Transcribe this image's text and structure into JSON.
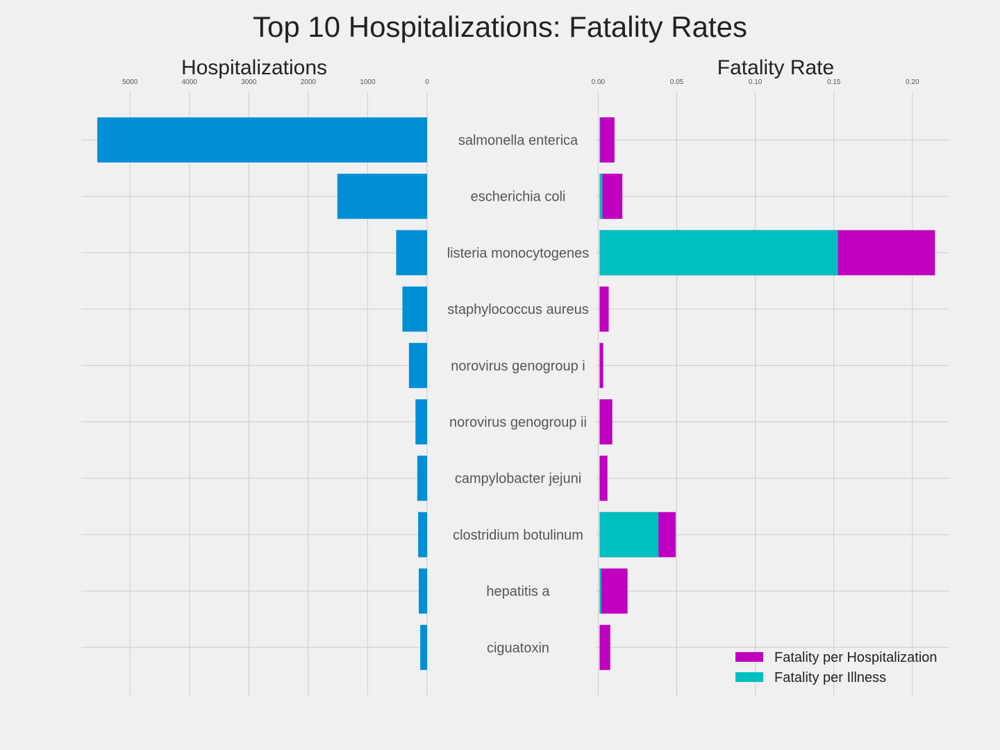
{
  "chart_data": [
    {
      "type": "bar",
      "orientation": "horizontal",
      "x_direction": "reversed",
      "title": "Top 10 Hospitalizations: Fatality Rates",
      "subtitle": "Hospitalizations",
      "categories": [
        "salmonella enterica",
        "escherichia coli",
        "listeria monocytogenes",
        "staphylococcus aureus",
        "norovirus genogroup i",
        "norovirus genogroup ii",
        "campylobacter jejuni",
        "clostridium botulinum",
        "hepatitis a",
        "ciguatoxin"
      ],
      "values": [
        5550,
        1510,
        520,
        415,
        305,
        195,
        165,
        150,
        140,
        115
      ],
      "xlim": [
        5820,
        0
      ],
      "xticks": [
        5000,
        4000,
        3000,
        2000,
        1000,
        0
      ],
      "xtick_labels": [
        "5000",
        "4000",
        "3000",
        "2000",
        "1000",
        "0"
      ],
      "color": "#008fd5",
      "grid": true
    },
    {
      "type": "bar",
      "orientation": "horizontal",
      "stacked": false,
      "subtitle": "Fatality Rate",
      "categories": [
        "salmonella enterica",
        "escherichia coli",
        "listeria monocytogenes",
        "staphylococcus aureus",
        "norovirus genogroup i",
        "norovirus genogroup ii",
        "campylobacter jejuni",
        "clostridium botulinum",
        "hepatitis a",
        "ciguatoxin"
      ],
      "series": [
        {
          "name": "Fatality per Hospitalization",
          "color": "#c000c0",
          "values": [
            0.0095,
            0.0145,
            0.2135,
            0.0058,
            0.0023,
            0.0081,
            0.005,
            0.0485,
            0.0178,
            0.0068
          ]
        },
        {
          "name": "Fatality per Illness",
          "color": "#00bfbf",
          "values": [
            0.0004,
            0.0018,
            0.1518,
            0.0001,
            0.0001,
            0.0001,
            0.0001,
            0.0375,
            0.0011,
            0.0001
          ]
        }
      ],
      "xlim": [
        -0.0015,
        0.2235
      ],
      "xticks": [
        0.0,
        0.05,
        0.1,
        0.15,
        0.2
      ],
      "xtick_labels": [
        "0.00",
        "0.05",
        "0.10",
        "0.15",
        "0.20"
      ],
      "legend": "bottom-right",
      "grid": true
    }
  ]
}
